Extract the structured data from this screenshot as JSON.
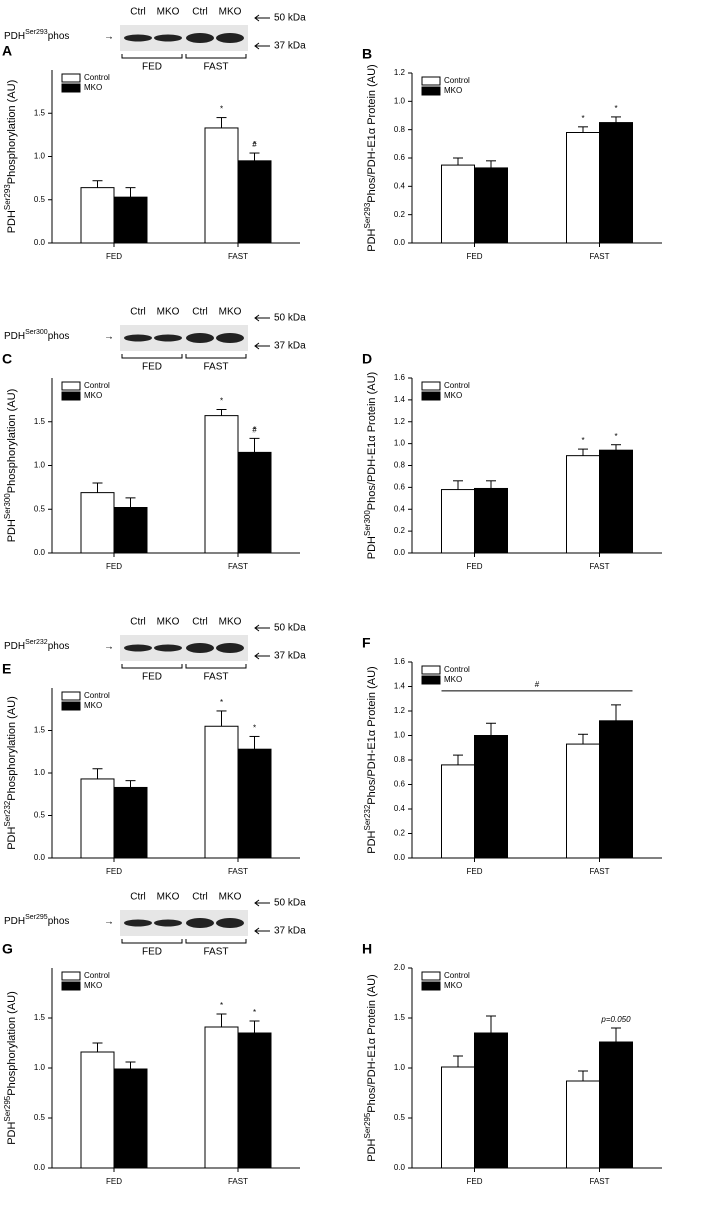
{
  "chart_data": [
    {
      "type": "bar",
      "panel": "A",
      "ylabel": [
        "PDH",
        "Ser293",
        "Phosphorylation (AU)"
      ],
      "categories": [
        "FED",
        "FAST"
      ],
      "series": [
        {
          "name": "Control",
          "color": "#ffffff",
          "values": [
            0.64,
            1.33
          ],
          "errors": [
            0.08,
            0.12
          ]
        },
        {
          "name": "MKO",
          "color": "#000000",
          "values": [
            0.53,
            0.95
          ],
          "errors": [
            0.11,
            0.09
          ]
        }
      ],
      "ylim": [
        0,
        2.0
      ],
      "yticks": [
        {
          "value": 0,
          "label": "0.0"
        },
        {
          "value": 0.5,
          "label": "0.5"
        },
        {
          "value": 1,
          "label": "1.0"
        },
        {
          "value": 1.5,
          "label": "1.5"
        }
      ],
      "annotations": [
        {
          "text": "*",
          "series": 0,
          "index": 1
        },
        {
          "text": "*",
          "series": 1,
          "index": 1
        },
        {
          "text": "#",
          "series": 1,
          "index": 1
        }
      ]
    },
    {
      "type": "bar",
      "panel": "B",
      "ylabel": [
        "PDH",
        "Ser293",
        "Phos/PDH-E1α  Protein (AU)"
      ],
      "categories": [
        "FED",
        "FAST"
      ],
      "series": [
        {
          "name": "Control",
          "color": "#ffffff",
          "values": [
            0.55,
            0.78
          ],
          "errors": [
            0.05,
            0.04
          ]
        },
        {
          "name": "MKO",
          "color": "#000000",
          "values": [
            0.53,
            0.85
          ],
          "errors": [
            0.05,
            0.04
          ]
        }
      ],
      "ylim": [
        0,
        1.2
      ],
      "yticks": [
        {
          "value": 0,
          "label": "0.0"
        },
        {
          "value": 0.2,
          "label": "0.2"
        },
        {
          "value": 0.4,
          "label": "0.4"
        },
        {
          "value": 0.6,
          "label": "0.6"
        },
        {
          "value": 0.8,
          "label": "0.8"
        },
        {
          "value": 1,
          "label": "1.0"
        },
        {
          "value": 1.2,
          "label": "1.2"
        }
      ],
      "annotations": [
        {
          "text": "*",
          "series": 0,
          "index": 1
        },
        {
          "text": "*",
          "series": 1,
          "index": 1
        }
      ]
    },
    {
      "type": "bar",
      "panel": "C",
      "ylabel": [
        "PDH",
        "Ser300",
        "Phosphorylation (AU)"
      ],
      "categories": [
        "FED",
        "FAST"
      ],
      "series": [
        {
          "name": "Control",
          "color": "#ffffff",
          "values": [
            0.69,
            1.57
          ],
          "errors": [
            0.11,
            0.07
          ]
        },
        {
          "name": "MKO",
          "color": "#000000",
          "values": [
            0.52,
            1.15
          ],
          "errors": [
            0.11,
            0.16
          ]
        }
      ],
      "ylim": [
        0,
        2.0
      ],
      "yticks": [
        {
          "value": 0,
          "label": "0.0"
        },
        {
          "value": 0.5,
          "label": "0.5"
        },
        {
          "value": 1,
          "label": "1.0"
        },
        {
          "value": 1.5,
          "label": "1.5"
        }
      ],
      "annotations": [
        {
          "text": "*",
          "series": 0,
          "index": 1
        },
        {
          "text": "*",
          "series": 1,
          "index": 1
        },
        {
          "text": "#",
          "series": 1,
          "index": 1
        }
      ]
    },
    {
      "type": "bar",
      "panel": "D",
      "ylabel": [
        "PDH",
        "Ser300",
        "Phos/PDH-E1α  Protein (AU)"
      ],
      "categories": [
        "FED",
        "FAST"
      ],
      "series": [
        {
          "name": "Control",
          "color": "#ffffff",
          "values": [
            0.58,
            0.89
          ],
          "errors": [
            0.08,
            0.06
          ]
        },
        {
          "name": "MKO",
          "color": "#000000",
          "values": [
            0.59,
            0.94
          ],
          "errors": [
            0.07,
            0.05
          ]
        }
      ],
      "ylim": [
        0,
        1.6
      ],
      "yticks": [
        {
          "value": 0,
          "label": "0.0"
        },
        {
          "value": 0.2,
          "label": "0.2"
        },
        {
          "value": 0.4,
          "label": "0.4"
        },
        {
          "value": 0.6,
          "label": "0.6"
        },
        {
          "value": 0.8,
          "label": "0.8"
        },
        {
          "value": 1,
          "label": "1.0"
        },
        {
          "value": 1.2,
          "label": "1.2"
        },
        {
          "value": 1.4,
          "label": "1.4"
        },
        {
          "value": 1.6,
          "label": "1.6"
        }
      ],
      "annotations": [
        {
          "text": "*",
          "series": 0,
          "index": 1
        },
        {
          "text": "*",
          "series": 1,
          "index": 1
        }
      ]
    },
    {
      "type": "bar",
      "panel": "E",
      "ylabel": [
        "PDH",
        "Ser232",
        "Phosphorylation (AU)"
      ],
      "categories": [
        "FED",
        "FAST"
      ],
      "series": [
        {
          "name": "Control",
          "color": "#ffffff",
          "values": [
            0.93,
            1.55
          ],
          "errors": [
            0.12,
            0.18
          ]
        },
        {
          "name": "MKO",
          "color": "#000000",
          "values": [
            0.83,
            1.28
          ],
          "errors": [
            0.08,
            0.15
          ]
        }
      ],
      "ylim": [
        0,
        2.0
      ],
      "yticks": [
        {
          "value": 0,
          "label": "0.0"
        },
        {
          "value": 0.5,
          "label": "0.5"
        },
        {
          "value": 1,
          "label": "1.0"
        },
        {
          "value": 1.5,
          "label": "1.5"
        }
      ],
      "annotations": [
        {
          "text": "*",
          "series": 0,
          "index": 1
        },
        {
          "text": "*",
          "series": 1,
          "index": 1
        }
      ]
    },
    {
      "type": "bar",
      "panel": "F",
      "ylabel": [
        "PDH",
        "Ser232",
        "Phos/PDH-E1α  Protein (AU)"
      ],
      "categories": [
        "FED",
        "FAST"
      ],
      "series": [
        {
          "name": "Control",
          "color": "#ffffff",
          "values": [
            0.76,
            0.93
          ],
          "errors": [
            0.08,
            0.08
          ]
        },
        {
          "name": "MKO",
          "color": "#000000",
          "values": [
            1.0,
            1.12
          ],
          "errors": [
            0.1,
            0.13
          ]
        }
      ],
      "ylim": [
        0,
        1.6
      ],
      "yticks": [
        {
          "value": 0,
          "label": "0.0"
        },
        {
          "value": 0.2,
          "label": "0.2"
        },
        {
          "value": 0.4,
          "label": "0.4"
        },
        {
          "value": 0.6,
          "label": "0.6"
        },
        {
          "value": 0.8,
          "label": "0.8"
        },
        {
          "value": 1,
          "label": "1.0"
        },
        {
          "value": 1.2,
          "label": "1.2"
        },
        {
          "value": 1.4,
          "label": "1.4"
        },
        {
          "value": 1.6,
          "label": "1.6"
        }
      ],
      "annotations": [
        {
          "text": "#",
          "span": true
        }
      ]
    },
    {
      "type": "bar",
      "panel": "G",
      "ylabel": [
        "PDH",
        "Ser295",
        "Phosphorylation (AU)"
      ],
      "categories": [
        "FED",
        "FAST"
      ],
      "series": [
        {
          "name": "Control",
          "color": "#ffffff",
          "values": [
            1.16,
            1.41
          ],
          "errors": [
            0.09,
            0.13
          ]
        },
        {
          "name": "MKO",
          "color": "#000000",
          "values": [
            0.99,
            1.35
          ],
          "errors": [
            0.07,
            0.12
          ]
        }
      ],
      "ylim": [
        0,
        2.0
      ],
      "yticks": [
        {
          "value": 0,
          "label": "0.0"
        },
        {
          "value": 0.5,
          "label": "0.5"
        },
        {
          "value": 1,
          "label": "1.0"
        },
        {
          "value": 1.5,
          "label": "1.5"
        }
      ],
      "annotations": [
        {
          "text": "*",
          "series": 0,
          "index": 1
        },
        {
          "text": "*",
          "series": 1,
          "index": 1
        }
      ]
    },
    {
      "type": "bar",
      "panel": "H",
      "ylabel": [
        "PDH",
        "Ser295",
        "Phos/PDH-E1α  Protein (AU)"
      ],
      "categories": [
        "FED",
        "FAST"
      ],
      "series": [
        {
          "name": "Control",
          "color": "#ffffff",
          "values": [
            1.01,
            0.87
          ],
          "errors": [
            0.11,
            0.1
          ]
        },
        {
          "name": "MKO",
          "color": "#000000",
          "values": [
            1.35,
            1.26
          ],
          "errors": [
            0.17,
            0.14
          ]
        }
      ],
      "ylim": [
        0,
        2.0
      ],
      "yticks": [
        {
          "value": 0,
          "label": "0.0"
        },
        {
          "value": 0.5,
          "label": "0.5"
        },
        {
          "value": 1,
          "label": "1.0"
        },
        {
          "value": 1.5,
          "label": "1.5"
        },
        {
          "value": 2,
          "label": "2.0"
        }
      ],
      "annotations": [
        {
          "text": "p=0.050",
          "series": 1,
          "index": 1
        }
      ]
    }
  ],
  "blots": [
    {
      "label": [
        "PDH",
        "Ser293",
        "phos"
      ],
      "lanes": [
        "Ctrl",
        "MKO",
        "Ctrl",
        "MKO"
      ],
      "groups": [
        "FED",
        "FAST"
      ],
      "markers": [
        "50 kDa",
        "37 kDa"
      ]
    },
    {
      "label": [
        "PDH",
        "Ser300",
        "phos"
      ],
      "lanes": [
        "Ctrl",
        "MKO",
        "Ctrl",
        "MKO"
      ],
      "groups": [
        "FED",
        "FAST"
      ],
      "markers": [
        "50 kDa",
        "37 kDa"
      ]
    },
    {
      "label": [
        "PDH",
        "Ser232",
        "phos"
      ],
      "lanes": [
        "Ctrl",
        "MKO",
        "Ctrl",
        "MKO"
      ],
      "groups": [
        "FED",
        "FAST"
      ],
      "markers": [
        "50 kDa",
        "37 kDa"
      ]
    },
    {
      "label": [
        "PDH",
        "Ser295",
        "phos"
      ],
      "lanes": [
        "Ctrl",
        "MKO",
        "Ctrl",
        "MKO"
      ],
      "groups": [
        "FED",
        "FAST"
      ],
      "markers": [
        "50 kDa",
        "37 kDa"
      ]
    }
  ]
}
